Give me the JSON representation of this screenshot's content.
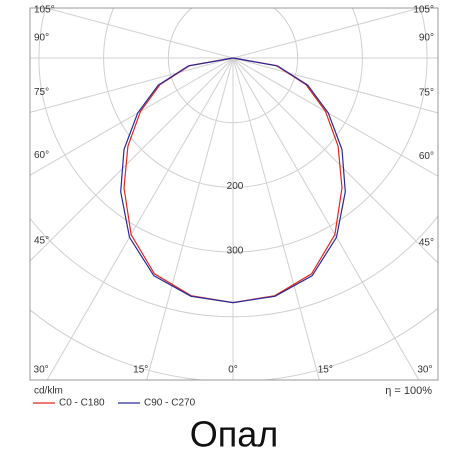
{
  "chart_data": {
    "type": "polar",
    "title": "Опал",
    "unit_label": "cd/klm",
    "efficiency_label": "η = 100%",
    "angles": [
      0,
      10,
      20,
      30,
      40,
      50,
      60,
      70,
      80,
      90
    ],
    "series": [
      {
        "name": "C0 - C180",
        "color": "#e0281e",
        "values": [
          378,
          373,
          355,
          315,
          262,
          212,
          165,
          120,
          68,
          0
        ]
      },
      {
        "name": "C90 - C270",
        "color": "#2a2a9a",
        "values": [
          378,
          374,
          358,
          320,
          270,
          220,
          170,
          123,
          70,
          0
        ]
      }
    ],
    "rlim": [
      0,
      500
    ],
    "rticks": [
      {
        "value": 100,
        "label": null
      },
      {
        "value": 200,
        "label": "200"
      },
      {
        "value": 300,
        "label": "300"
      },
      {
        "value": 400,
        "label": null
      },
      {
        "value": 500,
        "label": null
      }
    ],
    "angle_ticks": [
      {
        "value": 0,
        "label": "0°"
      },
      {
        "value": 15,
        "label": "15°"
      },
      {
        "value": 30,
        "label": "30°"
      },
      {
        "value": 45,
        "label": "45°"
      },
      {
        "value": 60,
        "label": "60°"
      },
      {
        "value": 75,
        "label": "75°"
      },
      {
        "value": 90,
        "label": "90°"
      },
      {
        "value": 105,
        "label": "105°"
      }
    ],
    "grid": true
  }
}
